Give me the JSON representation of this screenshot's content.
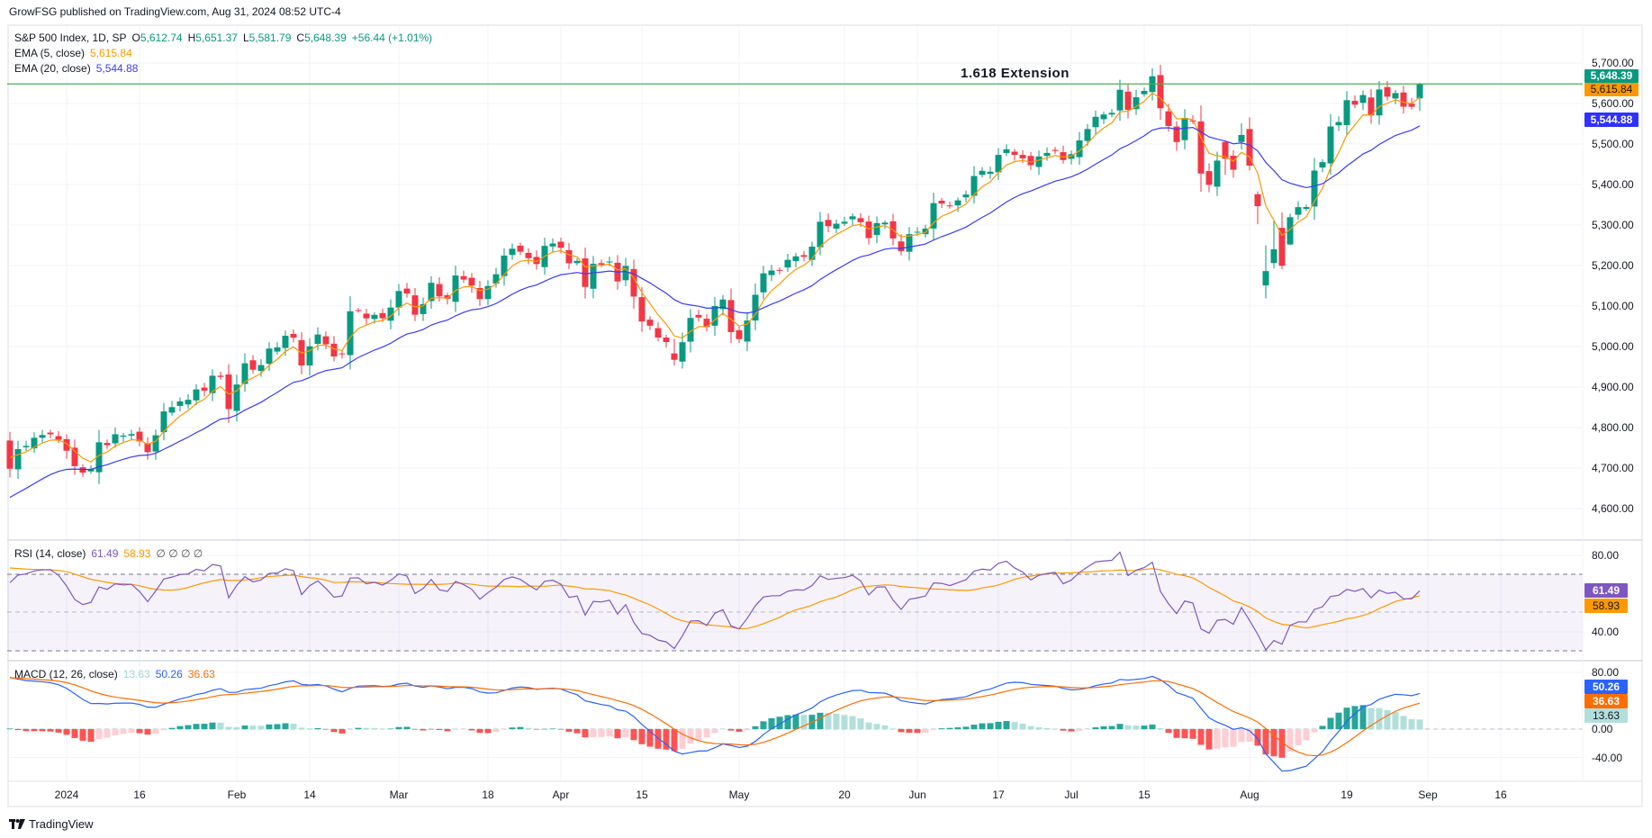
{
  "publisher": "GrowFSG published on TradingView.com, Aug 31, 2024 08:52 UTC-4",
  "legend": {
    "symbol": "S&P 500 Index, 1D, SP",
    "o_label": "O",
    "o": "5,612.74",
    "h_label": "H",
    "h": "5,651.37",
    "l_label": "L",
    "l": "5,581.79",
    "c_label": "C",
    "c": "5,648.39",
    "change": "+56.44 (+1.01%)",
    "ema5_label": "EMA (5, close)",
    "ema5": "5,615.84",
    "ema20_label": "EMA (20, close)",
    "ema20": "5,544.88",
    "rsi_label": "RSI (14, close)",
    "rsi": "61.49",
    "rsi_ma": "58.93",
    "rsi_na": "∅ ∅ ∅ ∅",
    "macd_label": "MACD (12, 26, close)",
    "macd_hist": "13.63",
    "macd": "50.26",
    "macd_signal": "36.63"
  },
  "annotation": "1.618 Extension",
  "price_labels": {
    "close": "5,648.39",
    "ema5": "5,615.84",
    "ema20": "5,544.88",
    "rsi": "61.49",
    "rsi_ma": "58.93",
    "macd": "50.26",
    "signal": "36.63",
    "hist": "13.63"
  },
  "footer": "TradingView",
  "colors": {
    "up": "#089981",
    "down": "#f23645",
    "ema5": "#ff9800",
    "ema20": "#3a3aff",
    "rsi": "#7e57c2",
    "macd": "#2962ff",
    "signal": "#ff6d00",
    "extension": "#4caf50"
  },
  "chart_data": {
    "type": "candlestick",
    "title": "S&P 500 Index, 1D, SP",
    "price_ticks": [
      "5,700.00",
      "5,600.00",
      "5,500.00",
      "5,400.00",
      "5,300.00",
      "5,200.00",
      "5,100.00",
      "5,000.00",
      "4,900.00",
      "4,800.00",
      "4,700.00",
      "4,600.00"
    ],
    "price_tick_values": [
      5700,
      5600,
      5500,
      5400,
      5300,
      5200,
      5100,
      5000,
      4900,
      4800,
      4700,
      4600
    ],
    "rsi_ticks": [
      "80.00",
      "40.00"
    ],
    "rsi_tick_values": [
      80,
      40
    ],
    "macd_ticks": [
      "80.00",
      "0.00",
      "-40.00"
    ],
    "macd_tick_values": [
      80,
      0,
      -40
    ],
    "extension_level": 5648.39,
    "x_ticks": [
      {
        "label": "2024",
        "bar": 7
      },
      {
        "label": "16",
        "bar": 16
      },
      {
        "label": "Feb",
        "bar": 28
      },
      {
        "label": "14",
        "bar": 37
      },
      {
        "label": "Mar",
        "bar": 48
      },
      {
        "label": "18",
        "bar": 59
      },
      {
        "label": "Apr",
        "bar": 68
      },
      {
        "label": "15",
        "bar": 78
      },
      {
        "label": "May",
        "bar": 90
      },
      {
        "label": "20",
        "bar": 103
      },
      {
        "label": "Jun",
        "bar": 112
      },
      {
        "label": "17",
        "bar": 122
      },
      {
        "label": "Jul",
        "bar": 131
      },
      {
        "label": "15",
        "bar": 140
      },
      {
        "label": "Aug",
        "bar": 153
      },
      {
        "label": "19",
        "bar": 165
      },
      {
        "label": "Sep",
        "bar": 175
      },
      {
        "label": "16",
        "bar": 184
      }
    ],
    "close": [
      4698.35,
      4746.75,
      4754.63,
      4774.75,
      4781.58,
      4783.35,
      4769.83,
      4742.83,
      4704.81,
      4688.68,
      4697.24,
      4763.54,
      4756.5,
      4783.45,
      4780.24,
      4783.83,
      4765.98,
      4739.21,
      4780.94,
      4839.81,
      4850.43,
      4864.6,
      4868.55,
      4894.16,
      4890.97,
      4927.93,
      4924.97,
      4845.65,
      4906.19,
      4958.61,
      4942.81,
      4954.23,
      4995.06,
      4997.91,
      5026.61,
      5021.84,
      4953.17,
      5000.62,
      5029.73,
      5005.57,
      4975.51,
      4981.8,
      5087.03,
      5088.8,
      5069.53,
      5078.18,
      5069.76,
      5096.27,
      5137.08,
      5130.95,
      5078.65,
      5104.76,
      5157.36,
      5123.69,
      5117.94,
      5175.27,
      5165.31,
      5150.48,
      5117.09,
      5149.42,
      5178.51,
      5224.62,
      5241.53,
      5234.18,
      5218.19,
      5203.58,
      5248.49,
      5254.35,
      5243.77,
      5205.81,
      5211.49,
      5147.21,
      5204.34,
      5202.39,
      5209.91,
      5160.64,
      5199.06,
      5123.41,
      5061.82,
      5051.41,
      5022.21,
      5011.12,
      4967.23,
      5010.6,
      5070.55,
      5071.63,
      5048.42,
      5099.96,
      5116.17,
      5035.69,
      5018.39,
      5064.2,
      5127.79,
      5180.74,
      5187.7,
      5187.67,
      5214.08,
      5222.68,
      5221.42,
      5246.68,
      5308.15,
      5297.1,
      5303.27,
      5308.13,
      5321.41,
      5307.01,
      5267.84,
      5304.72,
      5306.04,
      5266.95,
      5235.48,
      5277.51,
      5283.4,
      5291.34,
      5354.03,
      5352.96,
      5346.99,
      5360.79,
      5375.32,
      5421.03,
      5433.74,
      5431.6,
      5473.23,
      5487.03,
      5473.17,
      5464.62,
      5447.87,
      5469.3,
      5477.9,
      5482.87,
      5460.48,
      5475.09,
      5509.01,
      5537.02,
      5567.19,
      5572.85,
      5576.98,
      5633.91,
      5584.54,
      5615.35,
      5631.22,
      5667.2,
      5588.27,
      5544.59,
      5505.0,
      5564.41,
      5555.74,
      5427.13,
      5399.22,
      5459.1,
      5463.54,
      5436.44,
      5522.3,
      5446.68,
      5346.56,
      5186.33,
      5240.03,
      5199.5,
      5319.31,
      5344.16,
      5344.39,
      5434.43,
      5455.21,
      5543.22,
      5554.25,
      5608.25,
      5597.12,
      5620.85,
      5570.64,
      5634.61,
      5616.84,
      5625.8,
      5592.18,
      5591.96,
      5648.39
    ],
    "ohl_overrides": {
      "82": [
        4983,
        5019,
        4953
      ],
      "150": [
        5505,
        5508,
        5424
      ],
      "152": [
        5505,
        5551,
        5487
      ],
      "153": [
        5537,
        5566,
        5435
      ],
      "154": [
        5376,
        5383,
        5302
      ],
      "155": [
        5151,
        5250,
        5119
      ],
      "156": [
        5206,
        5312,
        5193
      ],
      "157": [
        5293,
        5331,
        5191
      ],
      "158": [
        5252,
        5328,
        5250
      ],
      "174": [
        5612.74,
        5651.37,
        5581.79
      ]
    }
  }
}
